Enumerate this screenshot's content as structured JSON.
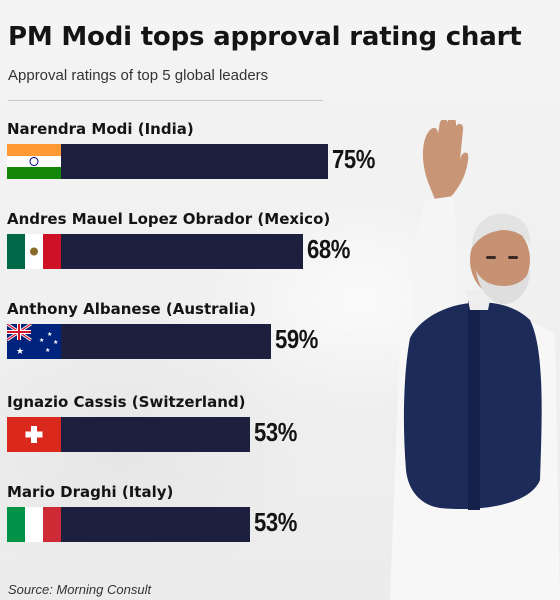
{
  "title": "PM Modi tops approval rating chart",
  "subtitle": "Approval ratings of top 5 global leaders",
  "source": "Source: Morning Consult",
  "colors": {
    "bar": "#1c1f3e",
    "background": "#f1f1f1"
  },
  "chart_data": {
    "type": "bar",
    "orientation": "horizontal",
    "categories": [
      "Narendra Modi (India)",
      "Andres Mauel Lopez Obrador (Mexico)",
      "Anthony Albanese (Australia)",
      "Ignazio Cassis (Switzerland)",
      "Mario Draghi (Italy)"
    ],
    "values": [
      75,
      68,
      59,
      53,
      53
    ],
    "value_labels": [
      "75%",
      "68%",
      "59%",
      "53%",
      "53%"
    ],
    "flags": [
      "india-flag",
      "mexico-flag",
      "australia-flag",
      "switzerland-flag",
      "italy-flag"
    ],
    "title": "PM Modi tops approval rating chart",
    "subtitle": "Approval ratings of top 5 global leaders",
    "grid": false,
    "legend": "none"
  },
  "image": {
    "photo": "narendra-modi-waving-photo"
  }
}
